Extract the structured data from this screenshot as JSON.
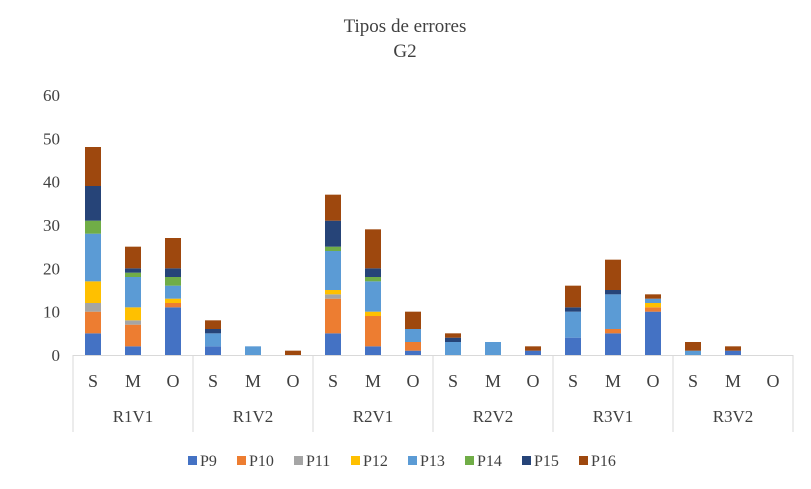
{
  "chart_data": {
    "type": "bar",
    "stacked": true,
    "title": "Tipos de errores",
    "subtitle": "G2",
    "ylim": [
      0,
      60
    ],
    "y_ticks": [
      0,
      10,
      20,
      30,
      40,
      50,
      60
    ],
    "grid": false,
    "legend_position": "bottom",
    "groups": [
      "R1V1",
      "R1V2",
      "R2V1",
      "R2V2",
      "R3V1",
      "R3V2"
    ],
    "subcategories": [
      "S",
      "M",
      "O"
    ],
    "categories": [
      "R1V1-S",
      "R1V1-M",
      "R1V1-O",
      "R1V2-S",
      "R1V2-M",
      "R1V2-O",
      "R2V1-S",
      "R2V1-M",
      "R2V1-O",
      "R2V2-S",
      "R2V2-M",
      "R2V2-O",
      "R3V1-S",
      "R3V1-M",
      "R3V1-O",
      "R3V2-S",
      "R3V2-M",
      "R3V2-O"
    ],
    "series": [
      {
        "name": "P9",
        "color": "#4472C4",
        "values": [
          5,
          2,
          11,
          2,
          0,
          0,
          5,
          2,
          1,
          0,
          0,
          1,
          4,
          5,
          10,
          0,
          1,
          0
        ]
      },
      {
        "name": "P10",
        "color": "#ED7D31",
        "values": [
          5,
          5,
          1,
          0,
          0,
          0,
          8,
          7,
          2,
          0,
          0,
          0,
          0,
          1,
          1,
          0,
          0,
          0
        ]
      },
      {
        "name": "P11",
        "color": "#A5A5A5",
        "values": [
          2,
          1,
          0,
          0,
          0,
          0,
          1,
          0,
          0,
          0,
          0,
          0,
          0,
          0,
          0,
          0,
          0,
          0
        ]
      },
      {
        "name": "P12",
        "color": "#FFC000",
        "values": [
          5,
          3,
          1,
          0,
          0,
          0,
          1,
          1,
          0,
          0,
          0,
          0,
          0,
          0,
          1,
          0,
          0,
          0
        ]
      },
      {
        "name": "P13",
        "color": "#5B9BD5",
        "values": [
          11,
          7,
          3,
          3,
          2,
          0,
          9,
          7,
          3,
          3,
          3,
          0,
          6,
          8,
          1,
          1,
          0,
          0
        ]
      },
      {
        "name": "P14",
        "color": "#70AD47",
        "values": [
          3,
          1,
          2,
          0,
          0,
          0,
          1,
          1,
          0,
          0,
          0,
          0,
          0,
          0,
          0,
          0,
          0,
          0
        ]
      },
      {
        "name": "P15",
        "color": "#264478",
        "values": [
          8,
          1,
          2,
          1,
          0,
          0,
          6,
          2,
          0,
          1,
          0,
          0,
          1,
          1,
          0,
          0,
          0,
          0
        ]
      },
      {
        "name": "P16",
        "color": "#9E480E",
        "values": [
          9,
          5,
          7,
          2,
          0,
          1,
          6,
          9,
          4,
          1,
          0,
          1,
          5,
          7,
          1,
          2,
          1,
          0
        ]
      }
    ]
  }
}
